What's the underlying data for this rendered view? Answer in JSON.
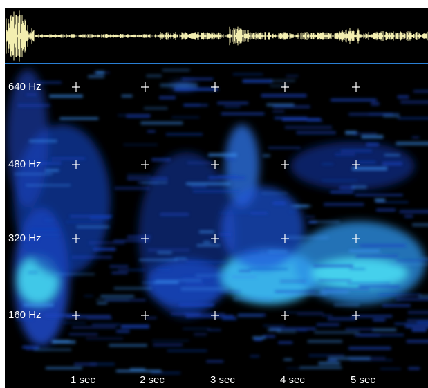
{
  "frequency_labels": [
    "640 Hz",
    "480 Hz",
    "320 Hz",
    "160 Hz"
  ],
  "time_labels": [
    "1 sec",
    "2 sec",
    "3 sec",
    "4 sec",
    "5 sec"
  ]
}
